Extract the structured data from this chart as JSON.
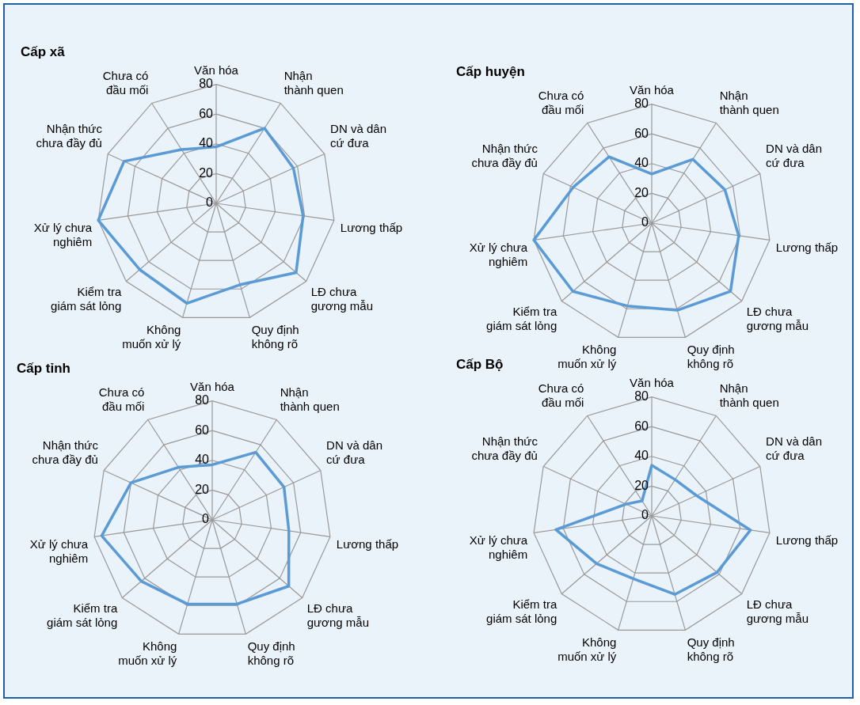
{
  "chart_data": [
    {
      "type": "radar",
      "title": "Cấp xã",
      "categories": [
        "Văn hóa",
        "Nhận thành quen",
        "DN và dân cứ đưa",
        "Lương thấp",
        "LĐ chưa gương mẫu",
        "Quy định không rõ",
        "Không muốn xử lý",
        "Kiểm tra giám sát lỏng",
        "Xử lý chưa nghiêm",
        "Nhận thức chưa đầy đủ",
        "Chưa có đầu mối"
      ],
      "series": [
        {
          "color": "#5b9bd5",
          "values": [
            38,
            60,
            57,
            59,
            71,
            57,
            70,
            68,
            80,
            68,
            43
          ]
        }
      ],
      "ylim": [
        0,
        80
      ],
      "yticks": [
        0,
        20,
        40,
        60,
        80
      ],
      "grid": true,
      "legend": false,
      "marker": "none"
    },
    {
      "type": "radar",
      "title": "Cấp huyện",
      "categories": [
        "Văn hóa",
        "Nhận thành quen",
        "DN và dân cứ đưa",
        "Lương thấp",
        "LĐ chưa gương mẫu",
        "Quy định không rõ",
        "Không muốn xử lý",
        "Kiểm tra giám sát lỏng",
        "Xử lý chưa nghiêm",
        "Nhận thức chưa đầy đủ",
        "Chưa có đầu mối"
      ],
      "series": [
        {
          "color": "#5b9bd5",
          "values": [
            33,
            51,
            54,
            59,
            70,
            61,
            58,
            70,
            80,
            58,
            53
          ]
        }
      ],
      "ylim": [
        0,
        80
      ],
      "yticks": [
        0,
        20,
        40,
        60,
        80
      ],
      "grid": true,
      "legend": false,
      "marker": "none"
    },
    {
      "type": "radar",
      "title": "Cấp tỉnh",
      "categories": [
        "Văn hóa",
        "Nhận thành quen",
        "DN và dân cứ đưa",
        "Lương thấp",
        "LĐ chưa gương mẫu",
        "Quy định không rõ",
        "Không muốn xử lý",
        "Kiểm tra giám sát lỏng",
        "Xử lý chưa nghiêm",
        "Nhận thức chưa đầy đủ",
        "Chưa có đầu mối"
      ],
      "series": [
        {
          "color": "#5b9bd5",
          "values": [
            37,
            54,
            53,
            52,
            68,
            59,
            59,
            63,
            75,
            60,
            42
          ]
        }
      ],
      "ylim": [
        0,
        80
      ],
      "yticks": [
        0,
        20,
        40,
        60,
        80
      ],
      "grid": true,
      "legend": false,
      "marker": "none"
    },
    {
      "type": "radar",
      "title": "Cấp Bộ",
      "categories": [
        "Văn hóa",
        "Nhận thành quen",
        "DN và dân cứ đưa",
        "Lương thấp",
        "LĐ chưa gương mẫu",
        "Quy định không rõ",
        "Không muốn xử lý",
        "Kiểm tra giám sát lỏng",
        "Xử lý chưa nghiêm",
        "Nhận thức chưa đầy đủ",
        "Chưa có đầu mối"
      ],
      "series": [
        {
          "color": "#5b9bd5",
          "values": [
            34,
            29,
            33,
            67,
            58,
            55,
            44,
            49,
            65,
            19,
            12
          ]
        }
      ],
      "ylim": [
        0,
        80
      ],
      "yticks": [
        0,
        20,
        40,
        60,
        80
      ],
      "grid": true,
      "legend": false,
      "marker": "none"
    }
  ]
}
